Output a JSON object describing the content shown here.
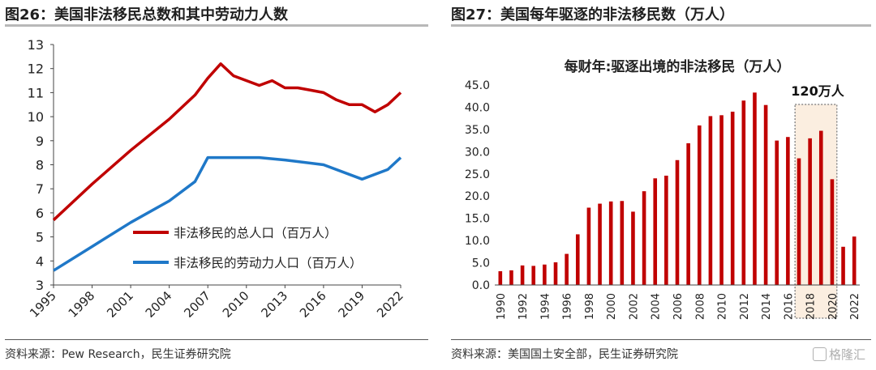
{
  "left_panel": {
    "title": "图26：美国非法移民总数和其中劳动力人数",
    "source": "资料来源：Pew Research，民生证券研究院"
  },
  "right_panel": {
    "title": "图27：美国每年驱逐的非法移民数（万人）",
    "source": "资料来源：美国国土安全部，民生证券研究院",
    "annotation": "120万人"
  },
  "watermark": "格隆汇",
  "colors": {
    "red": "#c00000",
    "blue": "#1f78c8"
  },
  "chart_data": [
    {
      "type": "line",
      "title": "",
      "xlabel": "",
      "ylabel": "",
      "xlim": [
        1995,
        2022
      ],
      "ylim": [
        3,
        13
      ],
      "y_ticks": [
        "3",
        "4",
        "5",
        "6",
        "7",
        "8",
        "9",
        "10",
        "11",
        "12",
        "13"
      ],
      "x_ticks": [
        "1995",
        "1998",
        "2001",
        "2004",
        "2007",
        "2010",
        "2013",
        "2016",
        "2019",
        "2022"
      ],
      "legend_position": "center-right",
      "series": [
        {
          "name": "非法移民的总人口（百万人）",
          "color": "#c00000",
          "x": [
            1995,
            1998,
            2001,
            2004,
            2006,
            2007,
            2008,
            2009,
            2011,
            2012,
            2013,
            2014,
            2015,
            2016,
            2017,
            2018,
            2019,
            2020,
            2021,
            2022
          ],
          "y": [
            5.7,
            7.2,
            8.6,
            9.9,
            10.9,
            11.6,
            12.2,
            11.7,
            11.3,
            11.5,
            11.2,
            11.2,
            11.1,
            11.0,
            10.7,
            10.5,
            10.5,
            10.2,
            10.5,
            11.0
          ]
        },
        {
          "name": "非法移民的劳动力人口（百万人）",
          "color": "#1f78c8",
          "x": [
            1995,
            1998,
            2001,
            2004,
            2006,
            2007,
            2009,
            2011,
            2013,
            2016,
            2019,
            2021,
            2022
          ],
          "y": [
            3.6,
            4.6,
            5.6,
            6.5,
            7.3,
            8.3,
            8.3,
            8.3,
            8.2,
            8.0,
            7.4,
            7.8,
            8.3
          ]
        }
      ]
    },
    {
      "type": "bar",
      "title": "每财年:驱逐出境的非法移民（万人）",
      "xlabel": "",
      "ylabel": "",
      "ylim": [
        0,
        45
      ],
      "y_ticks": [
        "0.0",
        "5.0",
        "10.0",
        "15.0",
        "20.0",
        "25.0",
        "30.0",
        "35.0",
        "40.0",
        "45.0"
      ],
      "x_ticks": [
        "1990",
        "1992",
        "1994",
        "1996",
        "1998",
        "2000",
        "2002",
        "2004",
        "2006",
        "2008",
        "2010",
        "2012",
        "2014",
        "2016",
        "2018",
        "2020",
        "2022"
      ],
      "categories": [
        "1990",
        "1991",
        "1992",
        "1993",
        "1994",
        "1995",
        "1996",
        "1997",
        "1998",
        "1999",
        "2000",
        "2001",
        "2002",
        "2003",
        "2004",
        "2005",
        "2006",
        "2007",
        "2008",
        "2009",
        "2010",
        "2011",
        "2012",
        "2013",
        "2014",
        "2015",
        "2016",
        "2017",
        "2018",
        "2019",
        "2020",
        "2021",
        "2022"
      ],
      "values": [
        3.1,
        3.3,
        4.4,
        4.3,
        4.6,
        5.1,
        7.0,
        11.4,
        17.4,
        18.3,
        18.8,
        18.9,
        16.5,
        21.1,
        24.0,
        24.6,
        28.1,
        31.9,
        35.9,
        38.0,
        38.2,
        39.0,
        41.5,
        43.3,
        40.5,
        32.5,
        33.3,
        28.5,
        33.0,
        34.7,
        23.8,
        8.6,
        10.9
      ],
      "highlight_range": [
        "2017",
        "2020"
      ],
      "color": "#c00000"
    }
  ]
}
